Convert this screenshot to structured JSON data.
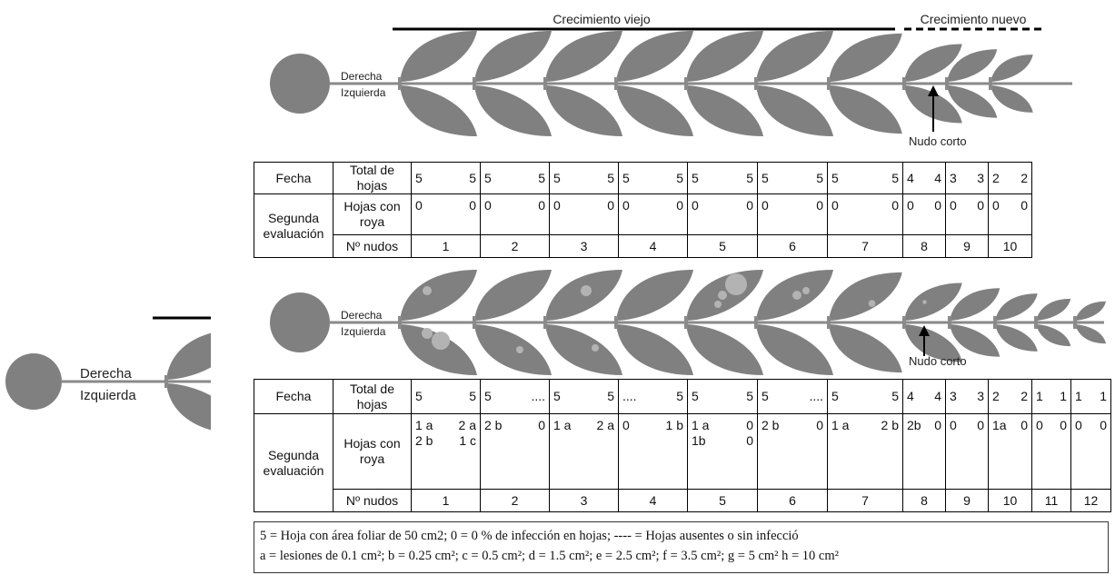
{
  "diagram_top": {
    "old_growth": "Crecimiento viejo",
    "new_growth": "Crecimiento nuevo",
    "right": "Derecha",
    "left": "Izquierda",
    "short_node": "Nudo corto"
  },
  "diagram_bottom": {
    "right": "Derecha",
    "left": "Izquierda",
    "short_node": "Nudo corto"
  },
  "diagram_side": {
    "right": "Derecha",
    "left": "Izquierda"
  },
  "table1": {
    "date": "Fecha",
    "total": "Total de hojas",
    "evaluation": "Segunda evaluación",
    "infected": "Hojas con roya",
    "nodes_label": "Nº nudos",
    "columns": [
      {
        "node": "1",
        "total": [
          "5",
          "5"
        ],
        "infected": [
          [
            "0",
            "0"
          ]
        ]
      },
      {
        "node": "2",
        "total": [
          "5",
          "5"
        ],
        "infected": [
          [
            "0",
            "0"
          ]
        ]
      },
      {
        "node": "3",
        "total": [
          "5",
          "5"
        ],
        "infected": [
          [
            "0",
            "0"
          ]
        ]
      },
      {
        "node": "4",
        "total": [
          "5",
          "5"
        ],
        "infected": [
          [
            "0",
            "0"
          ]
        ]
      },
      {
        "node": "5",
        "total": [
          "5",
          "5"
        ],
        "infected": [
          [
            "0",
            "0"
          ]
        ]
      },
      {
        "node": "6",
        "total": [
          "5",
          "5"
        ],
        "infected": [
          [
            "0",
            "0"
          ]
        ]
      },
      {
        "node": "7",
        "total": [
          "5",
          "5"
        ],
        "infected": [
          [
            "0",
            "0"
          ]
        ]
      },
      {
        "node": "8",
        "total": [
          "4",
          "4"
        ],
        "infected": [
          [
            "0",
            "0"
          ]
        ]
      },
      {
        "node": "9",
        "total": [
          "3",
          "3"
        ],
        "infected": [
          [
            "0",
            "0"
          ]
        ]
      },
      {
        "node": "10",
        "total": [
          "2",
          "2"
        ],
        "infected": [
          [
            "0",
            "0"
          ]
        ]
      }
    ]
  },
  "table2": {
    "date": "Fecha",
    "total": "Total de hojas",
    "evaluation": "Segunda evaluación",
    "infected": "Hojas con roya",
    "nodes_label": "Nº nudos",
    "columns": [
      {
        "node": "1",
        "total": [
          "5",
          "5"
        ],
        "infected": [
          [
            "1 a",
            "2 a"
          ],
          [
            "2 b",
            "1 c"
          ]
        ]
      },
      {
        "node": "2",
        "total": [
          "5",
          "...."
        ],
        "infected": [
          [
            "2 b",
            "0"
          ]
        ]
      },
      {
        "node": "3",
        "total": [
          "5",
          "5"
        ],
        "infected": [
          [
            "1 a",
            "2 a"
          ]
        ]
      },
      {
        "node": "4",
        "total": [
          "....",
          "5"
        ],
        "infected": [
          [
            "0",
            "1 b"
          ]
        ]
      },
      {
        "node": "5",
        "total": [
          "5",
          "5"
        ],
        "infected": [
          [
            "1 a",
            "0"
          ],
          [
            "1b",
            "0"
          ]
        ]
      },
      {
        "node": "6",
        "total": [
          "5",
          "...."
        ],
        "infected": [
          [
            "2 b",
            "0"
          ]
        ]
      },
      {
        "node": "7",
        "total": [
          "5",
          "5"
        ],
        "infected": [
          [
            "1 a",
            "2 b"
          ]
        ]
      },
      {
        "node": "8",
        "total": [
          "4",
          "4"
        ],
        "infected": [
          [
            "2b",
            "0"
          ]
        ]
      },
      {
        "node": "9",
        "total": [
          "3",
          "3"
        ],
        "infected": [
          [
            "0",
            "0"
          ]
        ]
      },
      {
        "node": "10",
        "total": [
          "2",
          "2"
        ],
        "infected": [
          [
            "1a",
            "0"
          ]
        ]
      },
      {
        "node": "11",
        "total": [
          "1",
          "1"
        ],
        "infected": [
          [
            "0",
            "0"
          ]
        ]
      },
      {
        "node": "12",
        "total": [
          "1",
          "1"
        ],
        "infected": [
          [
            "0",
            "0"
          ]
        ]
      }
    ]
  },
  "legend": [
    "5 = Hoja con área foliar de 50 cm2; 0 = 0 % de infección en hojas; ---- = Hojas ausentes o sin infecció",
    "a = lesiones de 0.1 cm²; b = 0.25 cm²; c = 0.5 cm²; d = 1.5 cm²; e = 2.5 cm²; f = 3.5 cm²; g = 5 cm² h = 10 cm²"
  ]
}
